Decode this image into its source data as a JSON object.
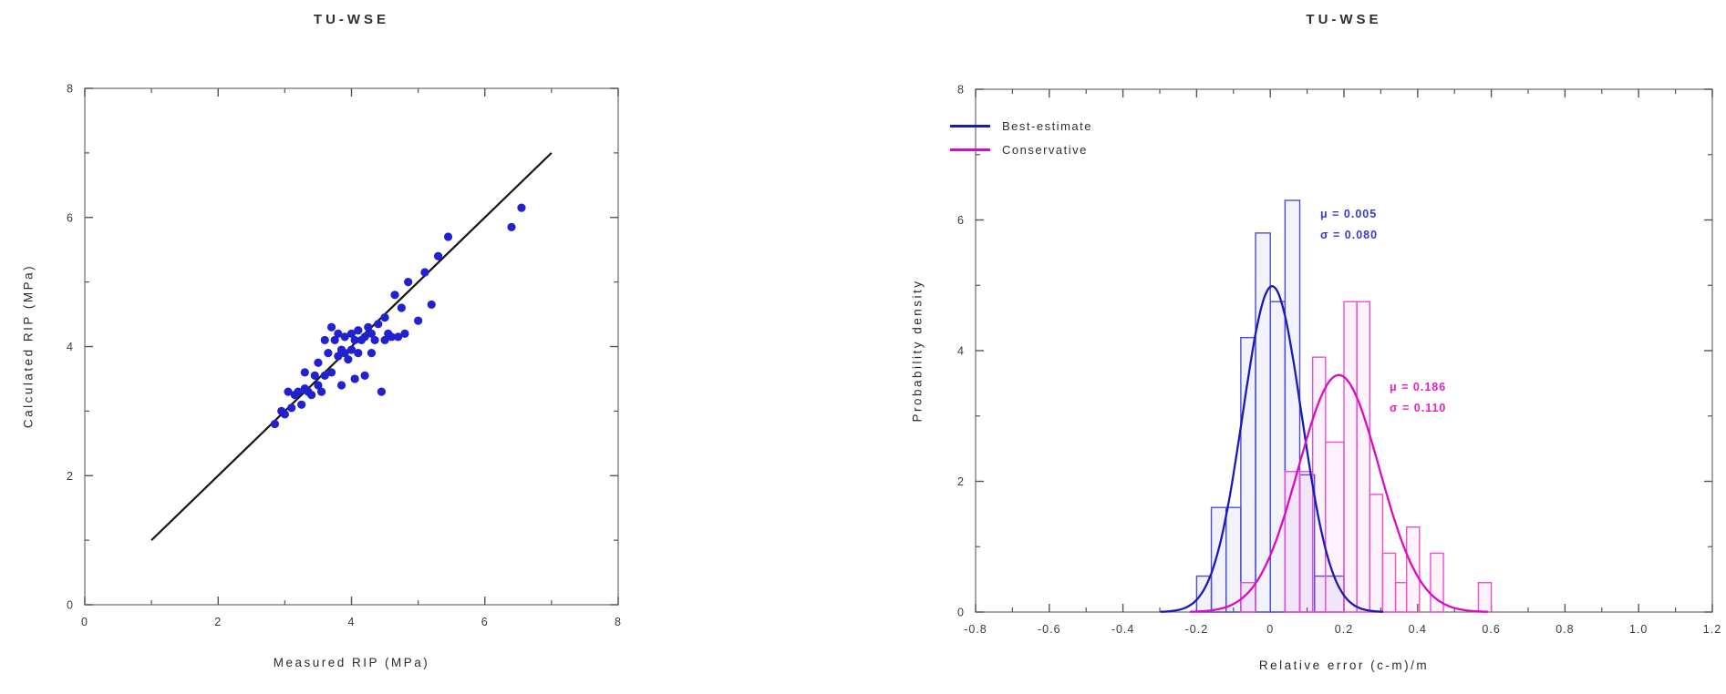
{
  "page": {
    "background": "#ffffff"
  },
  "chart_data": [
    {
      "type": "scatter",
      "title": "TU-WSE",
      "xlabel": "Measured RIP (MPa)",
      "ylabel": "Calculated RIP (MPa)",
      "xlim": [
        0,
        8
      ],
      "ylim": [
        0,
        8
      ],
      "xticks": {
        "values": [
          0,
          2,
          4,
          6,
          8
        ],
        "labels": [
          "0",
          "2",
          "4",
          "6",
          "8"
        ]
      },
      "yticks": {
        "values": [
          0,
          2,
          4,
          6,
          8
        ],
        "labels": [
          "0",
          "2",
          "4",
          "6",
          "8"
        ]
      },
      "xminor": [
        1,
        3,
        5,
        7
      ],
      "yminor": [
        1,
        3,
        5,
        7
      ],
      "grid": false,
      "marker_color": "#2121cf",
      "identity_line": {
        "from": [
          1,
          1
        ],
        "to": [
          7,
          7
        ],
        "color": "#141414"
      },
      "points": [
        [
          2.85,
          2.8
        ],
        [
          2.95,
          3.0
        ],
        [
          3.0,
          2.95
        ],
        [
          3.05,
          3.3
        ],
        [
          3.1,
          3.05
        ],
        [
          3.15,
          3.25
        ],
        [
          3.2,
          3.3
        ],
        [
          3.25,
          3.1
        ],
        [
          3.3,
          3.35
        ],
        [
          3.3,
          3.6
        ],
        [
          3.35,
          3.3
        ],
        [
          3.4,
          3.25
        ],
        [
          3.45,
          3.55
        ],
        [
          3.5,
          3.4
        ],
        [
          3.5,
          3.75
        ],
        [
          3.55,
          3.3
        ],
        [
          3.6,
          3.55
        ],
        [
          3.6,
          4.1
        ],
        [
          3.65,
          3.9
        ],
        [
          3.7,
          3.6
        ],
        [
          3.7,
          4.3
        ],
        [
          3.75,
          4.1
        ],
        [
          3.8,
          3.85
        ],
        [
          3.8,
          4.2
        ],
        [
          3.85,
          3.4
        ],
        [
          3.85,
          3.95
        ],
        [
          3.9,
          3.9
        ],
        [
          3.9,
          4.15
        ],
        [
          3.95,
          3.8
        ],
        [
          4.0,
          3.95
        ],
        [
          4.0,
          4.2
        ],
        [
          4.05,
          3.5
        ],
        [
          4.05,
          4.1
        ],
        [
          4.1,
          3.9
        ],
        [
          4.1,
          4.25
        ],
        [
          4.15,
          4.1
        ],
        [
          4.2,
          3.55
        ],
        [
          4.2,
          4.15
        ],
        [
          4.25,
          4.3
        ],
        [
          4.3,
          3.9
        ],
        [
          4.3,
          4.2
        ],
        [
          4.35,
          4.1
        ],
        [
          4.4,
          4.35
        ],
        [
          4.45,
          3.3
        ],
        [
          4.5,
          4.1
        ],
        [
          4.5,
          4.45
        ],
        [
          4.55,
          4.2
        ],
        [
          4.6,
          4.15
        ],
        [
          4.65,
          4.8
        ],
        [
          4.7,
          4.15
        ],
        [
          4.75,
          4.6
        ],
        [
          4.8,
          4.2
        ],
        [
          4.85,
          5.0
        ],
        [
          5.0,
          4.4
        ],
        [
          5.1,
          5.15
        ],
        [
          5.2,
          4.65
        ],
        [
          5.3,
          5.4
        ],
        [
          5.45,
          5.7
        ],
        [
          6.4,
          5.85
        ],
        [
          6.55,
          6.15
        ]
      ]
    },
    {
      "type": "histogram-density",
      "title": "TU-WSE",
      "xlabel": "Relative error (c-m)/m",
      "ylabel": "Probability density",
      "xlim": [
        -0.8,
        1.2
      ],
      "ylim": [
        0,
        8
      ],
      "xticks": {
        "values": [
          -0.8,
          -0.6,
          -0.4,
          -0.2,
          0,
          0.2,
          0.4,
          0.6,
          0.8,
          1.0,
          1.2
        ],
        "labels": [
          "-0.8",
          "-0.6",
          "-0.4",
          "-0.2",
          "0",
          "0.2",
          "0.4",
          "0.6",
          "0.8",
          "1.0",
          "1.2"
        ]
      },
      "yticks": {
        "values": [
          0,
          2,
          4,
          6,
          8
        ],
        "labels": [
          "0",
          "2",
          "4",
          "6",
          "8"
        ]
      },
      "xminor": [
        -0.7,
        -0.5,
        -0.3,
        -0.1,
        0.1,
        0.3,
        0.5,
        0.7,
        0.9,
        1.1
      ],
      "yminor": [
        1,
        3,
        5,
        7
      ],
      "grid": false,
      "legend_position": "top-left",
      "series": [
        {
          "name": "Best-estimate",
          "color": "#4d4dd4",
          "curve_color": "#1b1bb4",
          "mu": 0.005,
          "sigma": 0.08,
          "mu_label": "μ = 0.005",
          "sigma_label": "σ = 0.080",
          "bars": [
            [
              -0.2,
              -0.16,
              0.55
            ],
            [
              -0.16,
              -0.12,
              1.6
            ],
            [
              -0.12,
              -0.08,
              1.6
            ],
            [
              -0.08,
              -0.04,
              4.2
            ],
            [
              -0.04,
              0.0,
              5.8
            ],
            [
              0.0,
              0.04,
              4.75
            ],
            [
              0.04,
              0.08,
              6.3
            ],
            [
              0.08,
              0.12,
              2.1
            ],
            [
              0.12,
              0.2,
              0.55
            ]
          ]
        },
        {
          "name": "Conservative",
          "color": "#ea4fd2",
          "curve_color": "#d90ec4",
          "mu": 0.186,
          "sigma": 0.11,
          "mu_label": "μ = 0.186",
          "sigma_label": "σ = 0.110",
          "bars": [
            [
              -0.08,
              -0.04,
              0.45
            ],
            [
              0.04,
              0.08,
              2.15
            ],
            [
              0.08,
              0.115,
              2.15
            ],
            [
              0.115,
              0.15,
              3.9
            ],
            [
              0.15,
              0.2,
              2.6
            ],
            [
              0.2,
              0.235,
              4.75
            ],
            [
              0.235,
              0.27,
              4.75
            ],
            [
              0.27,
              0.305,
              1.8
            ],
            [
              0.305,
              0.34,
              0.9
            ],
            [
              0.34,
              0.37,
              0.45
            ],
            [
              0.37,
              0.405,
              1.3
            ],
            [
              0.435,
              0.47,
              0.9
            ],
            [
              0.565,
              0.6,
              0.45
            ]
          ]
        }
      ]
    }
  ]
}
